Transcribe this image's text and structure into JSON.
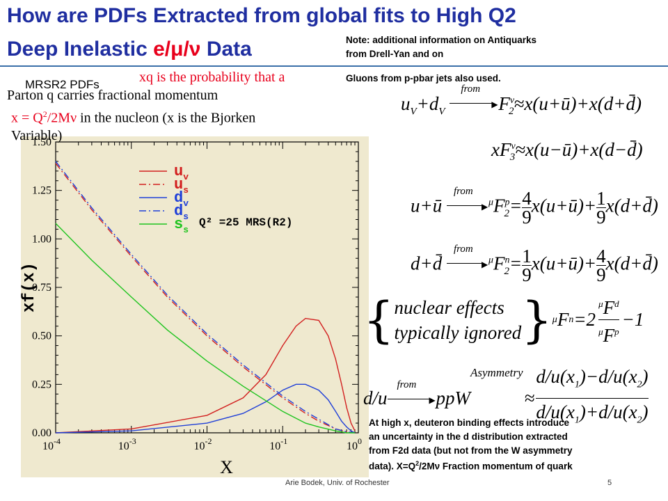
{
  "slide": {
    "title_line1": "How are PDFs Extracted from global fits to High Q2",
    "title_line2_a": "Deep Inelastic ",
    "title_line2_b": "e/μ/ν",
    "title_line2_c": " Data",
    "note_line1": "Note: additional information on Antiquarks",
    "note_line2": "from Drell-Yan and on",
    "note_line3": "Gluons from  p-pbar jets also used.",
    "mrsr2_label": "MRSR2 PDFs",
    "def_line1": "xq is the probability that a",
    "def_line2": "Parton q carries  fractional   momentum",
    "def_line3a": "x = Q",
    "def_line3b": "2",
    "def_line3c": "/2Mν",
    "def_line3d": "   in the nucleon (x is the Bjorken",
    "def_line4": "Variable)",
    "bottom_line1": "At high x, deuteron binding effects introduce",
    "bottom_line2": "an uncertainty in the d distribution extracted",
    "bottom_line3": "from F2d data (but not from the W asymmetry",
    "bottom_line4a": "data).  X=Q",
    "bottom_line4b": "2",
    "bottom_line4c": "/2Mν  Fraction momentum of quark",
    "footer_author": "Arie Bodek,  Univ. of Rochester",
    "page_number": "5"
  },
  "formulas": {
    "f1_lhs": "u",
    "f1_lhs_sub1": "V",
    "f1_plus": "+d",
    "f1_lhs_sub2": "V",
    "from": "from",
    "f1_rhs": "F",
    "f1_rhs_sub": "2",
    "f1_rhs_sup": "ν",
    "f1_expr": "≈x(u+ū)+x(d+d̄)",
    "f2_lhs": "xF",
    "f2_sub": "3",
    "f2_sup": "ν",
    "f2_expr": "≈x(u−ū)+x(d−d̄)",
    "f3_lhs": "u+ū",
    "f3_rhs_pre": "μ",
    "f3_rhs": "F",
    "f3_sub": "2",
    "f3_sup": "p",
    "f3_eq": "=",
    "f3_n1": "4",
    "f3_d1": "9",
    "f3_mid": "x(u+ū)+",
    "f3_n2": "1",
    "f3_d2": "9",
    "f3_end": "x(d+d̄)",
    "f4_lhs": "d+d̄",
    "f4_sup": "n",
    "f4_mid": "x(u+ū)+",
    "f4_n1": "1",
    "f4_n2": "4",
    "f5_line1": "nuclear effects",
    "f5_line2": "typically ignored",
    "f5_eq": "=2",
    "f5_num": "F",
    "f5_num_sup": "d",
    "f5_den_sup": "p",
    "f5_minus": "−1",
    "f6_lhs": "d/u",
    "f6_mid": "ppW",
    "f6_sup": "Asymmetry",
    "f6_num": "d/u(x",
    "f6_num_sub1": "1",
    "f6_num_mid": ")−d/u(x",
    "f6_num_sub2": "2",
    "f6_num_end": ")",
    "f6_den_mid": ")+d/u(x",
    "f6_approx": "≈"
  },
  "chart_data": {
    "type": "line",
    "xlabel": "X",
    "ylabel": "xf(x)",
    "x_scale": "log",
    "xlim": [
      0.0001,
      1
    ],
    "ylim": [
      0,
      1.5
    ],
    "x_tick_labels": [
      {
        "base": "10",
        "exp": "-4"
      },
      {
        "base": "10",
        "exp": "-3"
      },
      {
        "base": "10",
        "exp": "-2"
      },
      {
        "base": "10",
        "exp": "-1"
      },
      {
        "base": "10",
        "exp": "0"
      }
    ],
    "y_ticks": [
      "0.00",
      "0.25",
      "0.50",
      "0.75",
      "1.00",
      "1.25",
      "1.50"
    ],
    "annotation": "Q² =25 MRS(R2)",
    "legend_placement": "top-right",
    "series": [
      {
        "name": "u_v",
        "label": "u",
        "sub": "v",
        "color": "#d21f1f",
        "dash": "solid",
        "x": [
          0.0001,
          0.001,
          0.01,
          0.03,
          0.06,
          0.1,
          0.15,
          0.2,
          0.3,
          0.4,
          0.5,
          0.6,
          0.7,
          0.8,
          0.9
        ],
        "y": [
          0.0,
          0.02,
          0.09,
          0.18,
          0.3,
          0.45,
          0.55,
          0.59,
          0.58,
          0.5,
          0.38,
          0.25,
          0.13,
          0.05,
          0.01
        ]
      },
      {
        "name": "u_s",
        "label": "u",
        "sub": "s",
        "color": "#d21f1f",
        "dash": "dashdot",
        "x": [
          0.0001,
          0.0003,
          0.001,
          0.003,
          0.01,
          0.03,
          0.1,
          0.2,
          0.3,
          0.5,
          0.7,
          0.9
        ],
        "y": [
          1.39,
          1.15,
          0.91,
          0.7,
          0.5,
          0.34,
          0.18,
          0.1,
          0.06,
          0.02,
          0.005,
          0.0
        ]
      },
      {
        "name": "d_v",
        "label": "d",
        "sub": "v",
        "color": "#1f3fd8",
        "dash": "solid",
        "x": [
          0.0001,
          0.001,
          0.01,
          0.03,
          0.06,
          0.1,
          0.15,
          0.2,
          0.3,
          0.4,
          0.5,
          0.6,
          0.7,
          0.8,
          0.9
        ],
        "y": [
          0.0,
          0.01,
          0.05,
          0.1,
          0.16,
          0.22,
          0.25,
          0.25,
          0.22,
          0.17,
          0.11,
          0.06,
          0.03,
          0.01,
          0.0
        ]
      },
      {
        "name": "d_s",
        "label": "d",
        "sub": "s",
        "color": "#1f3fd8",
        "dash": "dashdot",
        "x": [
          0.0001,
          0.0003,
          0.001,
          0.003,
          0.01,
          0.03,
          0.1,
          0.2,
          0.3,
          0.5,
          0.7,
          0.9
        ],
        "y": [
          1.4,
          1.16,
          0.92,
          0.71,
          0.51,
          0.35,
          0.19,
          0.11,
          0.07,
          0.02,
          0.005,
          0.0
        ]
      },
      {
        "name": "s_s",
        "label": "s",
        "sub": "s",
        "color": "#1fc41f",
        "dash": "solid",
        "x": [
          0.0001,
          0.0003,
          0.001,
          0.003,
          0.01,
          0.03,
          0.1,
          0.2,
          0.3,
          0.5,
          0.7,
          0.9
        ],
        "y": [
          1.08,
          0.89,
          0.7,
          0.53,
          0.37,
          0.24,
          0.11,
          0.05,
          0.03,
          0.01,
          0.0,
          0.0
        ]
      }
    ]
  }
}
